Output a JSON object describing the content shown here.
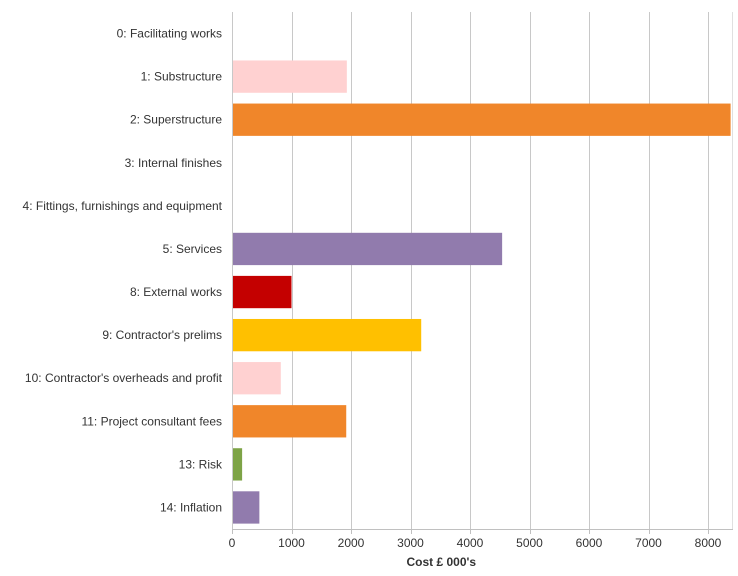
{
  "chart_data": {
    "type": "bar",
    "orientation": "horizontal",
    "categories": [
      "0: Facilitating works",
      "1: Substructure",
      "2: Superstructure",
      "3: Internal finishes",
      "4: Fittings, furnishings and equipment",
      "5: Services",
      "8: External works",
      "9: Contractor's prelims",
      "10: Contractor's overheads and profit",
      "11: Project consultant fees",
      "13: Risk",
      "14: Inflation"
    ],
    "values": [
      0,
      1930,
      8380,
      0,
      0,
      4540,
      1000,
      3180,
      820,
      1920,
      170,
      460
    ],
    "colors": [
      "#ffd1d1",
      "#ffd1d1",
      "#f0862a",
      "#ffd1d1",
      "#ffd1d1",
      "#917bad",
      "#c40000",
      "#ffc000",
      "#ffd1d1",
      "#f0862a",
      "#7da346",
      "#917bad"
    ],
    "xlabel": "Cost £ 000's",
    "xlim": [
      0,
      8500
    ],
    "xticks": [
      0,
      1000,
      2000,
      3000,
      4000,
      5000,
      6000,
      7000,
      8000
    ],
    "grid": true,
    "legend": "none"
  }
}
